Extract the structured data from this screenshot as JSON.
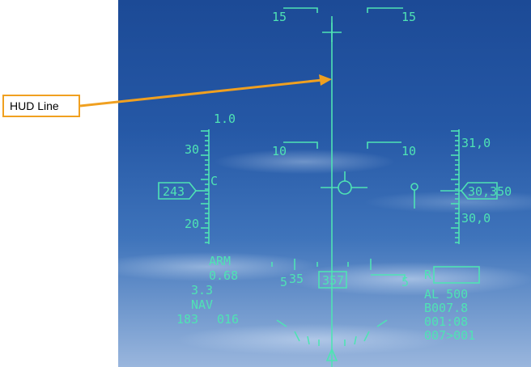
{
  "callout": {
    "label": "HUD Line"
  },
  "colors": {
    "hud_symbology": "#4fe3b4",
    "callout_border": "#f0a020",
    "arrow": "#f0a020"
  },
  "pitch_ladder": {
    "top_left": "15",
    "top_right": "15",
    "mid_left": "10",
    "mid_right": "10"
  },
  "speed_scale": {
    "g_value": "1.0",
    "upper": "30",
    "lower": "20",
    "current": "243",
    "marker": "C"
  },
  "altitude_scale": {
    "upper": "31,0",
    "lower": "30,0",
    "current": "30,350"
  },
  "heading_tape": {
    "left": "5",
    "left_value": "35",
    "current": "357",
    "right": "5"
  },
  "lower_left": {
    "weapon_mode": "ARM",
    "mach": "0.68",
    "g_load": "3.3",
    "nav_mode": "NAV",
    "bearing": "183",
    "range": "016"
  },
  "lower_right": {
    "radar_indicator": "R",
    "alt_low": "AL  500",
    "waypoint_distance": "B007.8",
    "time_to_go": "001:08",
    "steerpoint": "007>001"
  }
}
